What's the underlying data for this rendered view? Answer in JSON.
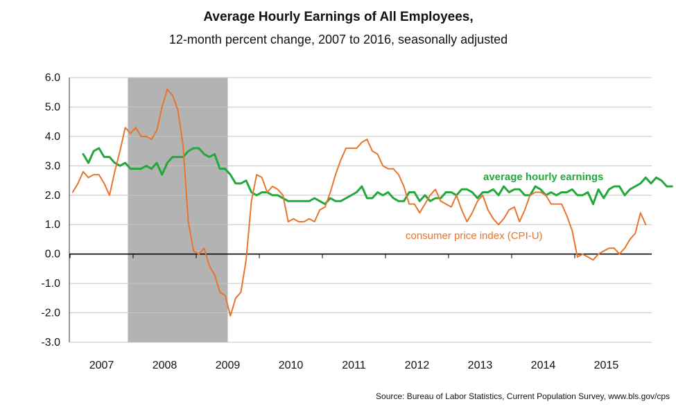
{
  "chart_data": {
    "type": "line",
    "title": "Average Hourly Earnings of All Employees,",
    "subtitle": "12-month percent change, 2007 to 2016, seasonally adjusted",
    "xlabel": "",
    "ylabel": "",
    "ylim": [
      -3.0,
      6.0
    ],
    "y_ticks": [
      "6.0",
      "5.0",
      "4.0",
      "3.0",
      "2.0",
      "1.0",
      "0.0",
      "-1.0",
      "-2.0",
      "-3.0"
    ],
    "x_ticks": [
      "2007",
      "2008",
      "2009",
      "2010",
      "2011",
      "2012",
      "2013",
      "2014",
      "2015"
    ],
    "grid": true,
    "recession_shading": {
      "start": "2007-12",
      "end": "2009-06",
      "color": "#b3b3b3"
    },
    "source": "Source: Bureau of Labor Statistics, Current Population Survey, www.bls.gov/cps",
    "series": [
      {
        "name": "average hourly earnings",
        "color": "#22a83c",
        "start": "2007-03",
        "values": [
          3.4,
          3.1,
          3.5,
          3.6,
          3.3,
          3.3,
          3.1,
          3.0,
          3.1,
          2.9,
          2.9,
          2.9,
          3.0,
          2.9,
          3.1,
          2.7,
          3.1,
          3.3,
          3.3,
          3.3,
          3.5,
          3.6,
          3.6,
          3.4,
          3.3,
          3.4,
          2.9,
          2.9,
          2.7,
          2.4,
          2.4,
          2.5,
          2.1,
          2.0,
          2.1,
          2.1,
          2.0,
          2.0,
          1.9,
          1.8,
          1.8,
          1.8,
          1.8,
          1.8,
          1.9,
          1.8,
          1.7,
          1.9,
          1.8,
          1.8,
          1.9,
          2.0,
          2.1,
          2.3,
          1.9,
          1.9,
          2.1,
          2.0,
          2.1,
          1.9,
          1.8,
          1.8,
          2.1,
          2.1,
          1.8,
          2.0,
          1.8,
          1.9,
          1.9,
          2.1,
          2.1,
          2.0,
          2.2,
          2.2,
          2.1,
          1.9,
          2.1,
          2.1,
          2.2,
          2.0,
          2.3,
          2.1,
          2.2,
          2.2,
          2.0,
          2.0,
          2.3,
          2.2,
          2.0,
          2.1,
          2.0,
          2.1,
          2.1,
          2.2,
          2.0,
          2.0,
          2.1,
          1.7,
          2.2,
          1.9,
          2.2,
          2.3,
          2.3,
          2.0,
          2.2,
          2.3,
          2.4,
          2.6,
          2.4,
          2.6,
          2.5,
          2.3,
          2.3
        ]
      },
      {
        "name": "consumer price index (CPI-U)",
        "color": "#e8742c",
        "start": "2007-01",
        "values": [
          2.1,
          2.4,
          2.8,
          2.6,
          2.7,
          2.7,
          2.4,
          2.0,
          2.8,
          3.5,
          4.3,
          4.1,
          4.3,
          4.0,
          4.0,
          3.9,
          4.2,
          5.0,
          5.6,
          5.4,
          4.9,
          3.7,
          1.1,
          0.1,
          0.0,
          0.2,
          -0.4,
          -0.7,
          -1.3,
          -1.4,
          -2.1,
          -1.5,
          -1.3,
          -0.2,
          1.8,
          2.7,
          2.6,
          2.1,
          2.3,
          2.2,
          2.0,
          1.1,
          1.2,
          1.1,
          1.1,
          1.2,
          1.1,
          1.5,
          1.6,
          2.1,
          2.7,
          3.2,
          3.6,
          3.6,
          3.6,
          3.8,
          3.9,
          3.5,
          3.4,
          3.0,
          2.9,
          2.9,
          2.7,
          2.3,
          1.7,
          1.7,
          1.4,
          1.7,
          2.0,
          2.2,
          1.8,
          1.7,
          1.6,
          2.0,
          1.5,
          1.1,
          1.4,
          1.8,
          2.0,
          1.5,
          1.2,
          1.0,
          1.2,
          1.5,
          1.6,
          1.1,
          1.5,
          2.0,
          2.1,
          2.1,
          2.0,
          1.7,
          1.7,
          1.7,
          1.3,
          0.8,
          -0.1,
          0.0,
          -0.1,
          -0.2,
          0.0,
          0.1,
          0.2,
          0.2,
          0.0,
          0.2,
          0.5,
          0.7,
          1.4,
          1.0
        ]
      }
    ]
  }
}
